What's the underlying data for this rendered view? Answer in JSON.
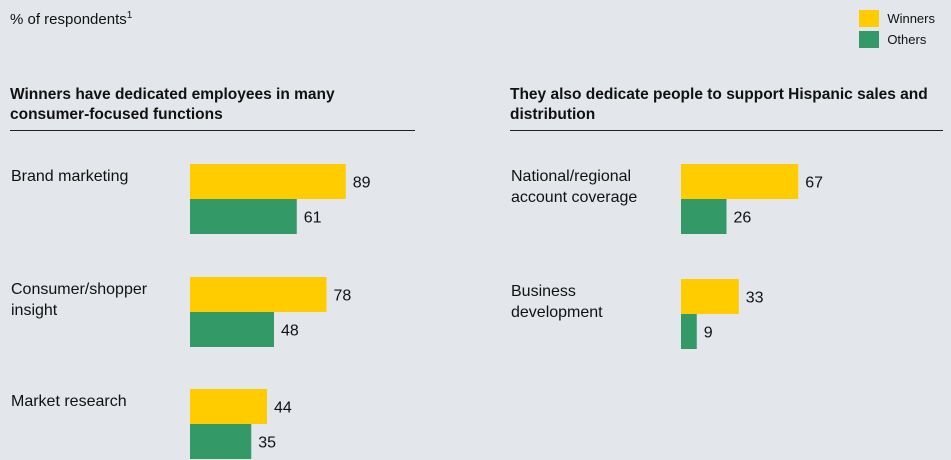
{
  "unit_label": "% of respondents",
  "unit_footnote": "1",
  "legend": [
    {
      "name": "Winners",
      "color": "#ffcc00"
    },
    {
      "name": "Others",
      "color": "#339966"
    }
  ],
  "chart_data": [
    {
      "type": "bar",
      "title": "Winners have dedicated employees in many consumer-focused functions",
      "categories": [
        "Brand marketing",
        "Consumer/shopper insight",
        "Market research"
      ],
      "category_lines": [
        [
          "Brand marketing"
        ],
        [
          "Consumer/shopper",
          "insight"
        ],
        [
          "Market research"
        ]
      ],
      "series": [
        {
          "name": "Winners",
          "color": "#ffcc00",
          "values": [
            89,
            78,
            44
          ]
        },
        {
          "name": "Others",
          "color": "#339966",
          "values": [
            61,
            48,
            35
          ]
        }
      ],
      "orientation": "horizontal",
      "data_labels": true
    },
    {
      "type": "bar",
      "title": "They also dedicate people to support Hispanic sales and distribution",
      "categories": [
        "National/regional account coverage",
        "Business development"
      ],
      "category_lines": [
        [
          "National/regional",
          "account coverage"
        ],
        [
          "Business",
          "development"
        ]
      ],
      "series": [
        {
          "name": "Winners",
          "color": "#ffcc00",
          "values": [
            67,
            33
          ]
        },
        {
          "name": "Others",
          "color": "#339966",
          "values": [
            26,
            9
          ]
        }
      ],
      "orientation": "horizontal",
      "data_labels": true
    }
  ]
}
